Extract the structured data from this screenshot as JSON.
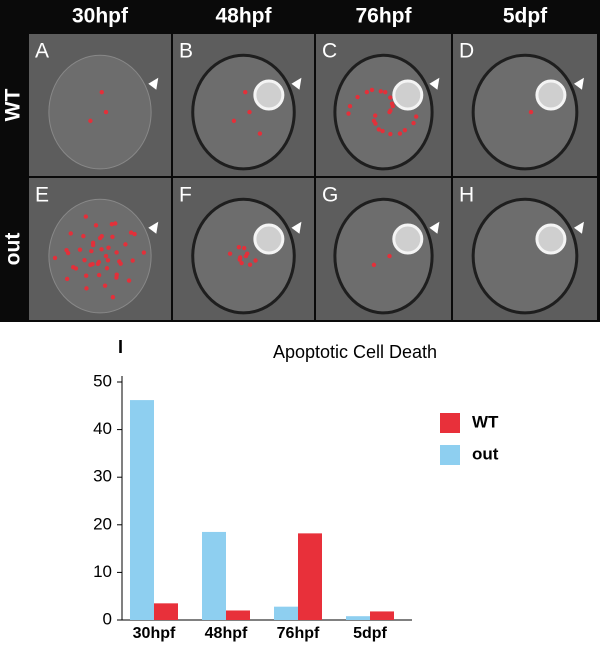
{
  "figure": {
    "columns": [
      "30hpf",
      "48hpf",
      "76hpf",
      "5dpf"
    ],
    "rows": [
      "WT",
      "out"
    ],
    "letters": [
      "A",
      "B",
      "C",
      "D",
      "E",
      "F",
      "G",
      "H"
    ],
    "chart_label": "I"
  },
  "chart_data": {
    "type": "bar",
    "title": "Apoptotic Cell Death",
    "categories": [
      "30hpf",
      "48hpf",
      "76hpf",
      "5dpf"
    ],
    "series": [
      {
        "name": "out",
        "color": "#8ecff0",
        "values": [
          46.2,
          18.5,
          2.8,
          0.8
        ]
      },
      {
        "name": "WT",
        "color": "#e8303a",
        "values": [
          3.5,
          2,
          18.2,
          1.8
        ]
      }
    ],
    "legend_order": [
      "WT",
      "out"
    ],
    "ylim": [
      0,
      50
    ],
    "yticks": [
      0,
      10,
      20,
      30,
      40,
      50
    ],
    "grid": false
  }
}
